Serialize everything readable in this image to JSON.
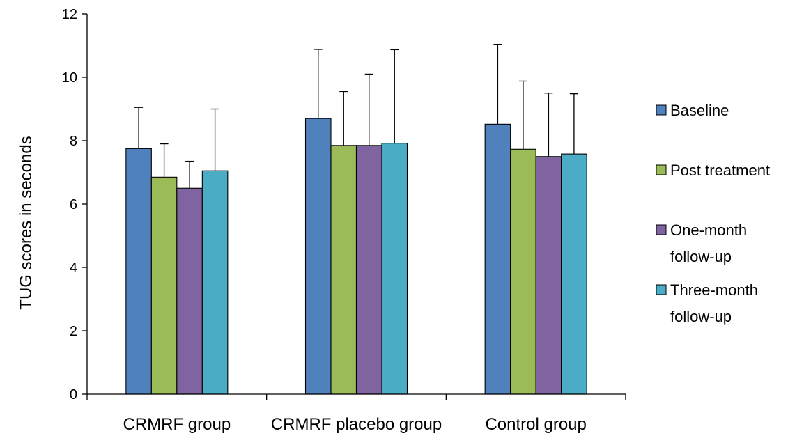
{
  "chart_data": {
    "type": "bar",
    "title": "",
    "xlabel": "",
    "ylabel": "TUG scores in seconds",
    "ylim": [
      0,
      12
    ],
    "yticks": [
      "0",
      "2",
      "4",
      "6",
      "8",
      "10",
      "12"
    ],
    "grid": false,
    "legend_position": "right",
    "categories": [
      "CRMRF group",
      "CRMRF placebo group",
      "Control group"
    ],
    "series": [
      {
        "name": "Baseline",
        "color": "#4F81BD",
        "values": [
          7.75,
          8.7,
          8.52
        ],
        "errors": [
          1.3,
          2.18,
          2.52
        ]
      },
      {
        "name": "Post treatment",
        "color": "#9BBB59",
        "values": [
          6.85,
          7.85,
          7.73
        ],
        "errors": [
          1.05,
          1.7,
          2.15
        ]
      },
      {
        "name": "One-month follow-up",
        "color": "#8064A2",
        "values": [
          6.5,
          7.85,
          7.5
        ],
        "errors": [
          0.85,
          2.25,
          2.0
        ]
      },
      {
        "name": "Three-month follow-up",
        "color": "#4BACC6",
        "values": [
          7.05,
          7.92,
          7.58
        ],
        "errors": [
          1.95,
          2.95,
          1.9
        ]
      }
    ],
    "legend_lines": [
      [
        "Baseline"
      ],
      [
        "Post treatment"
      ],
      [
        "One-month",
        "follow-up"
      ],
      [
        "Three-month",
        "follow-up"
      ]
    ]
  }
}
